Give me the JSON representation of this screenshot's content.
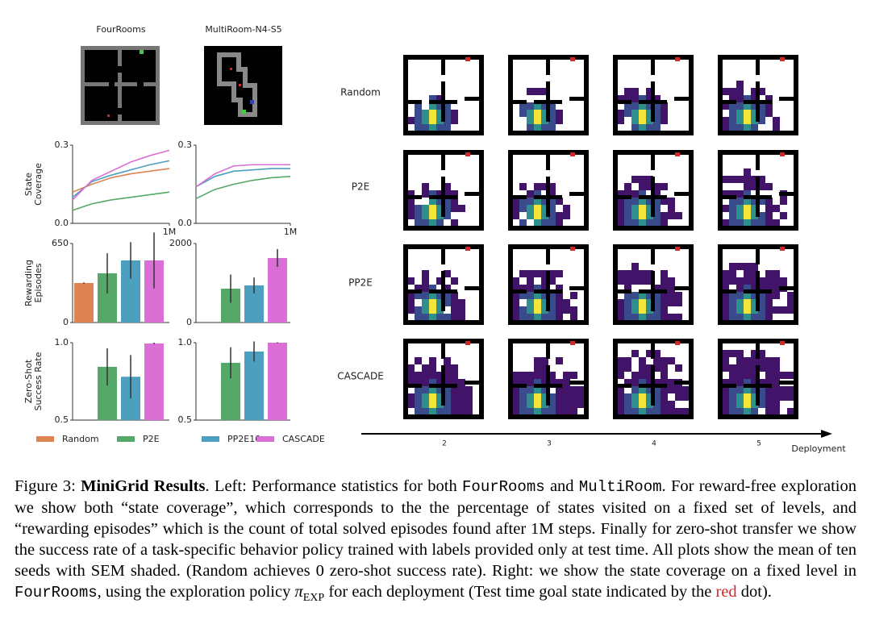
{
  "environments": [
    "FourRooms",
    "MultiRoom-N4-S5"
  ],
  "legend": [
    {
      "name": "Random",
      "color": "#dd8452"
    },
    {
      "name": "P2E",
      "color": "#55a868"
    },
    {
      "name": "PP2E10",
      "color": "#4c9fbf"
    },
    {
      "name": "CASCADE",
      "color": "#da70d6"
    }
  ],
  "chart_data": [
    {
      "type": "line",
      "y_label": [
        "State",
        "Coverage"
      ],
      "x": [
        0,
        200000,
        400000,
        600000,
        800000,
        1000000
      ],
      "xlim": [
        0,
        1000000
      ],
      "xticks": [
        {
          "value": 1000000,
          "label": "1M"
        }
      ],
      "ylim": [
        0,
        0.3
      ],
      "yticks": [
        {
          "value": 0,
          "label": "0.0"
        },
        0.3
      ],
      "series": [
        {
          "color": "#dd8452",
          "values": [
            0.12,
            0.15,
            0.175,
            0.19,
            0.2,
            0.21
          ]
        },
        {
          "color": "#55a868",
          "values": [
            0.05,
            0.075,
            0.09,
            0.1,
            0.11,
            0.12
          ]
        },
        {
          "color": "#4c9fbf",
          "values": [
            0.1,
            0.16,
            0.185,
            0.205,
            0.225,
            0.24
          ]
        },
        {
          "color": "#da70d6",
          "values": [
            0.09,
            0.165,
            0.2,
            0.235,
            0.26,
            0.28
          ]
        }
      ]
    },
    {
      "type": "line",
      "x": [
        0,
        200000,
        400000,
        600000,
        800000,
        1000000
      ],
      "xlim": [
        0,
        1000000
      ],
      "xticks": [
        {
          "value": 1000000,
          "label": "1M"
        }
      ],
      "ylim": [
        0,
        0.3
      ],
      "yticks": [
        {
          "value": 0,
          "label": "0.0"
        },
        0.3
      ],
      "series": [
        {
          "color": "#55a868",
          "values": [
            0.095,
            0.13,
            0.15,
            0.165,
            0.175,
            0.18
          ]
        },
        {
          "color": "#4c9fbf",
          "values": [
            0.14,
            0.18,
            0.2,
            0.205,
            0.21,
            0.21
          ]
        },
        {
          "color": "#da70d6",
          "values": [
            0.14,
            0.19,
            0.22,
            0.225,
            0.225,
            0.225
          ]
        }
      ]
    },
    {
      "type": "bar",
      "y_label": [
        "Rewarding",
        "Episodes"
      ],
      "ylim": [
        0,
        650
      ],
      "yticks": [
        0,
        650
      ],
      "values": [
        325,
        405,
        511,
        511
      ],
      "errors": [
        5,
        165,
        150,
        230
      ]
    },
    {
      "type": "bar",
      "ylim": [
        0,
        2000
      ],
      "yticks": [
        0,
        2000
      ],
      "values": [
        null,
        857,
        939,
        1633
      ],
      "errors": [
        null,
        357,
        200,
        225
      ]
    },
    {
      "type": "bar",
      "y_label": [
        "Zero-Shot",
        "Success Rate"
      ],
      "ylim": [
        0.5,
        1
      ],
      "yticks": [
        0.5,
        {
          "value": 1,
          "label": "1.0"
        }
      ],
      "values": [
        null,
        0.844,
        0.78,
        0.995
      ],
      "errors": [
        null,
        0.12,
        0.14,
        0.005
      ]
    },
    {
      "type": "bar",
      "ylim": [
        0.5,
        1
      ],
      "yticks": [
        0.5,
        {
          "value": 1,
          "label": "1.0"
        }
      ],
      "values": [
        null,
        0.87,
        0.943,
        1
      ],
      "errors": [
        null,
        0.1,
        0.065,
        0.003
      ]
    }
  ],
  "heatmap": {
    "rows": [
      "Random",
      "P2E",
      "PP2E",
      "CASCADE"
    ],
    "deployments": [
      2,
      3,
      4,
      5
    ],
    "axis_label": "Deployment"
  },
  "caption": {
    "parts": [
      "Figure 3: ",
      "MiniGrid Results",
      ". Left: Performance statistics for both ",
      "FourRooms",
      " and ",
      "MultiRoom",
      ". For reward-free exploration we show both “state coverage”, which corresponds to the the percentage of states visited on a fixed set of levels, and “rewarding episodes” which is the count of total solved episodes found after 1M steps. Finally for zero-shot transfer we show the success rate of a task-specific behavior policy trained with labels provided only at test time. All plots show the mean of ten seeds with SEM shaded. (Random achieves 0 zero-shot success rate). Right: we show the state coverage on a fixed level in ",
      "FourRooms",
      ", using the exploration policy ",
      "π",
      "EXP",
      " for each deployment (Test time goal state indicated by the ",
      "red",
      " dot)."
    ]
  }
}
